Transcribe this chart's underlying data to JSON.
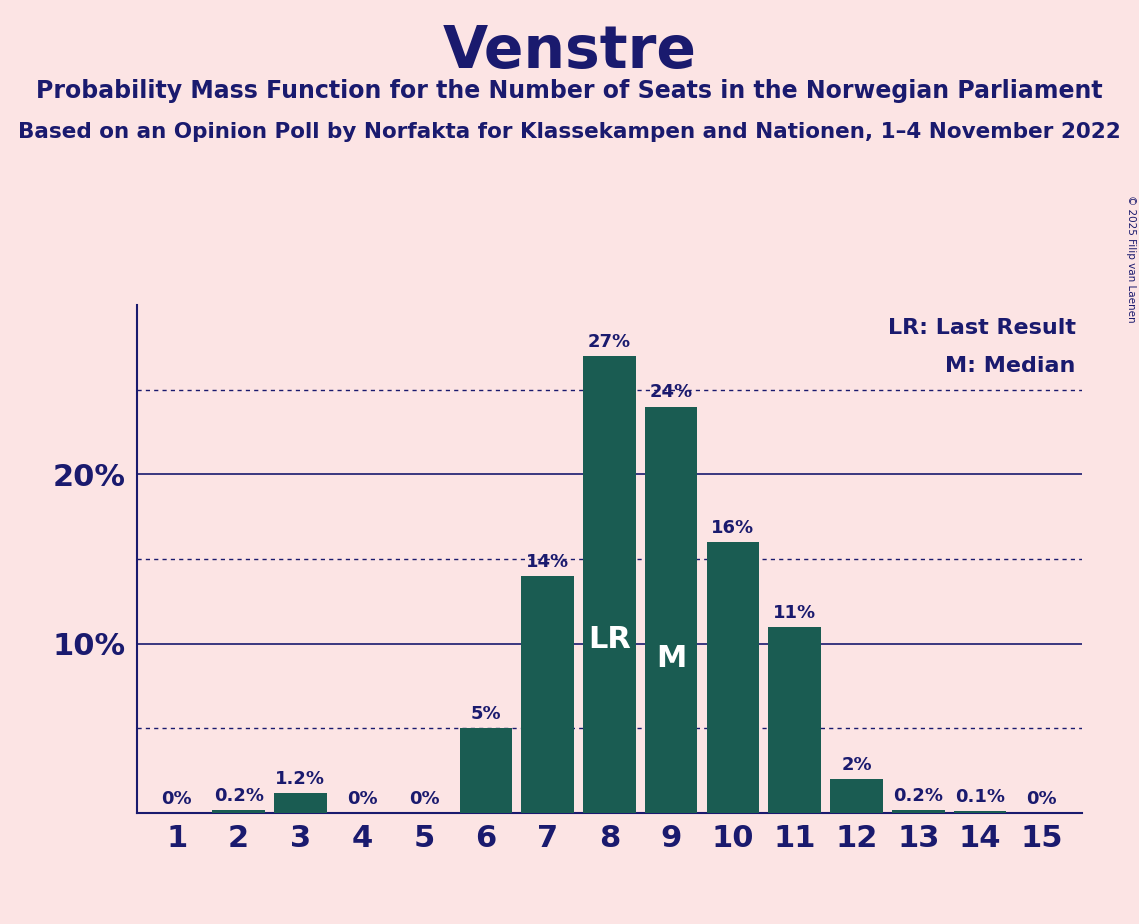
{
  "title": "Venstre",
  "subtitle1": "Probability Mass Function for the Number of Seats in the Norwegian Parliament",
  "subtitle2": "Based on an Opinion Poll by Norfakta for Klassekampen and Nationen, 1–4 November 2022",
  "copyright": "© 2025 Filip van Laenen",
  "categories": [
    1,
    2,
    3,
    4,
    5,
    6,
    7,
    8,
    9,
    10,
    11,
    12,
    13,
    14,
    15
  ],
  "values": [
    0.0,
    0.2,
    1.2,
    0.0,
    0.0,
    5.0,
    14.0,
    27.0,
    24.0,
    16.0,
    11.0,
    2.0,
    0.2,
    0.1,
    0.0
  ],
  "bar_color": "#1a5c52",
  "background_color": "#fce4e4",
  "title_color": "#1a1a6e",
  "axis_color": "#1a1a6e",
  "label_color_dark": "#1a1a6e",
  "label_color_white": "#ffffff",
  "lr_seat": 8,
  "median_seat": 9,
  "legend_lr": "LR: Last Result",
  "legend_m": "M: Median",
  "dotted_lines": [
    5,
    15,
    25
  ],
  "solid_lines": [
    10,
    20
  ],
  "ylim": [
    0,
    30
  ],
  "bar_width": 0.85
}
